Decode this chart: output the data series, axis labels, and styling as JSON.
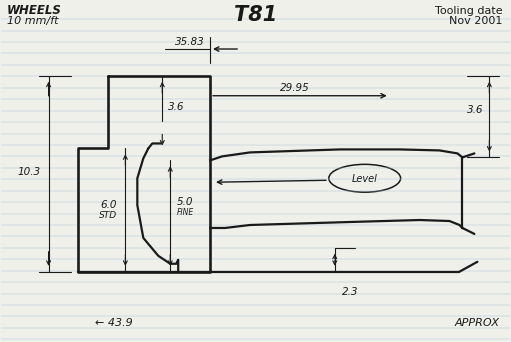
{
  "title": "T81",
  "top_left_line1": "WHEELS",
  "top_left_line2": "10 mm/ft",
  "top_right_line1": "Tooling date",
  "top_right_line2": "Nov 2001",
  "bottom_left": "← 43.9",
  "bottom_right": "APPROX",
  "dim_35_83": "35.83",
  "dim_29_95": "29.95",
  "dim_10_3": "10.3",
  "dim_3_6_left": "3.6",
  "dim_3_6_right": "3.6",
  "dim_6_0": "6.0",
  "dim_6_0_sub": "STD",
  "dim_5_0": "5.0",
  "dim_5_0_sub": "FINE",
  "dim_2_3": "2.3",
  "label_level": "Level",
  "bg_color": "#f0f0eb",
  "line_color": "#1a1a1a",
  "ruled_line_color": "#a8c4d8",
  "line_width": 1.6
}
